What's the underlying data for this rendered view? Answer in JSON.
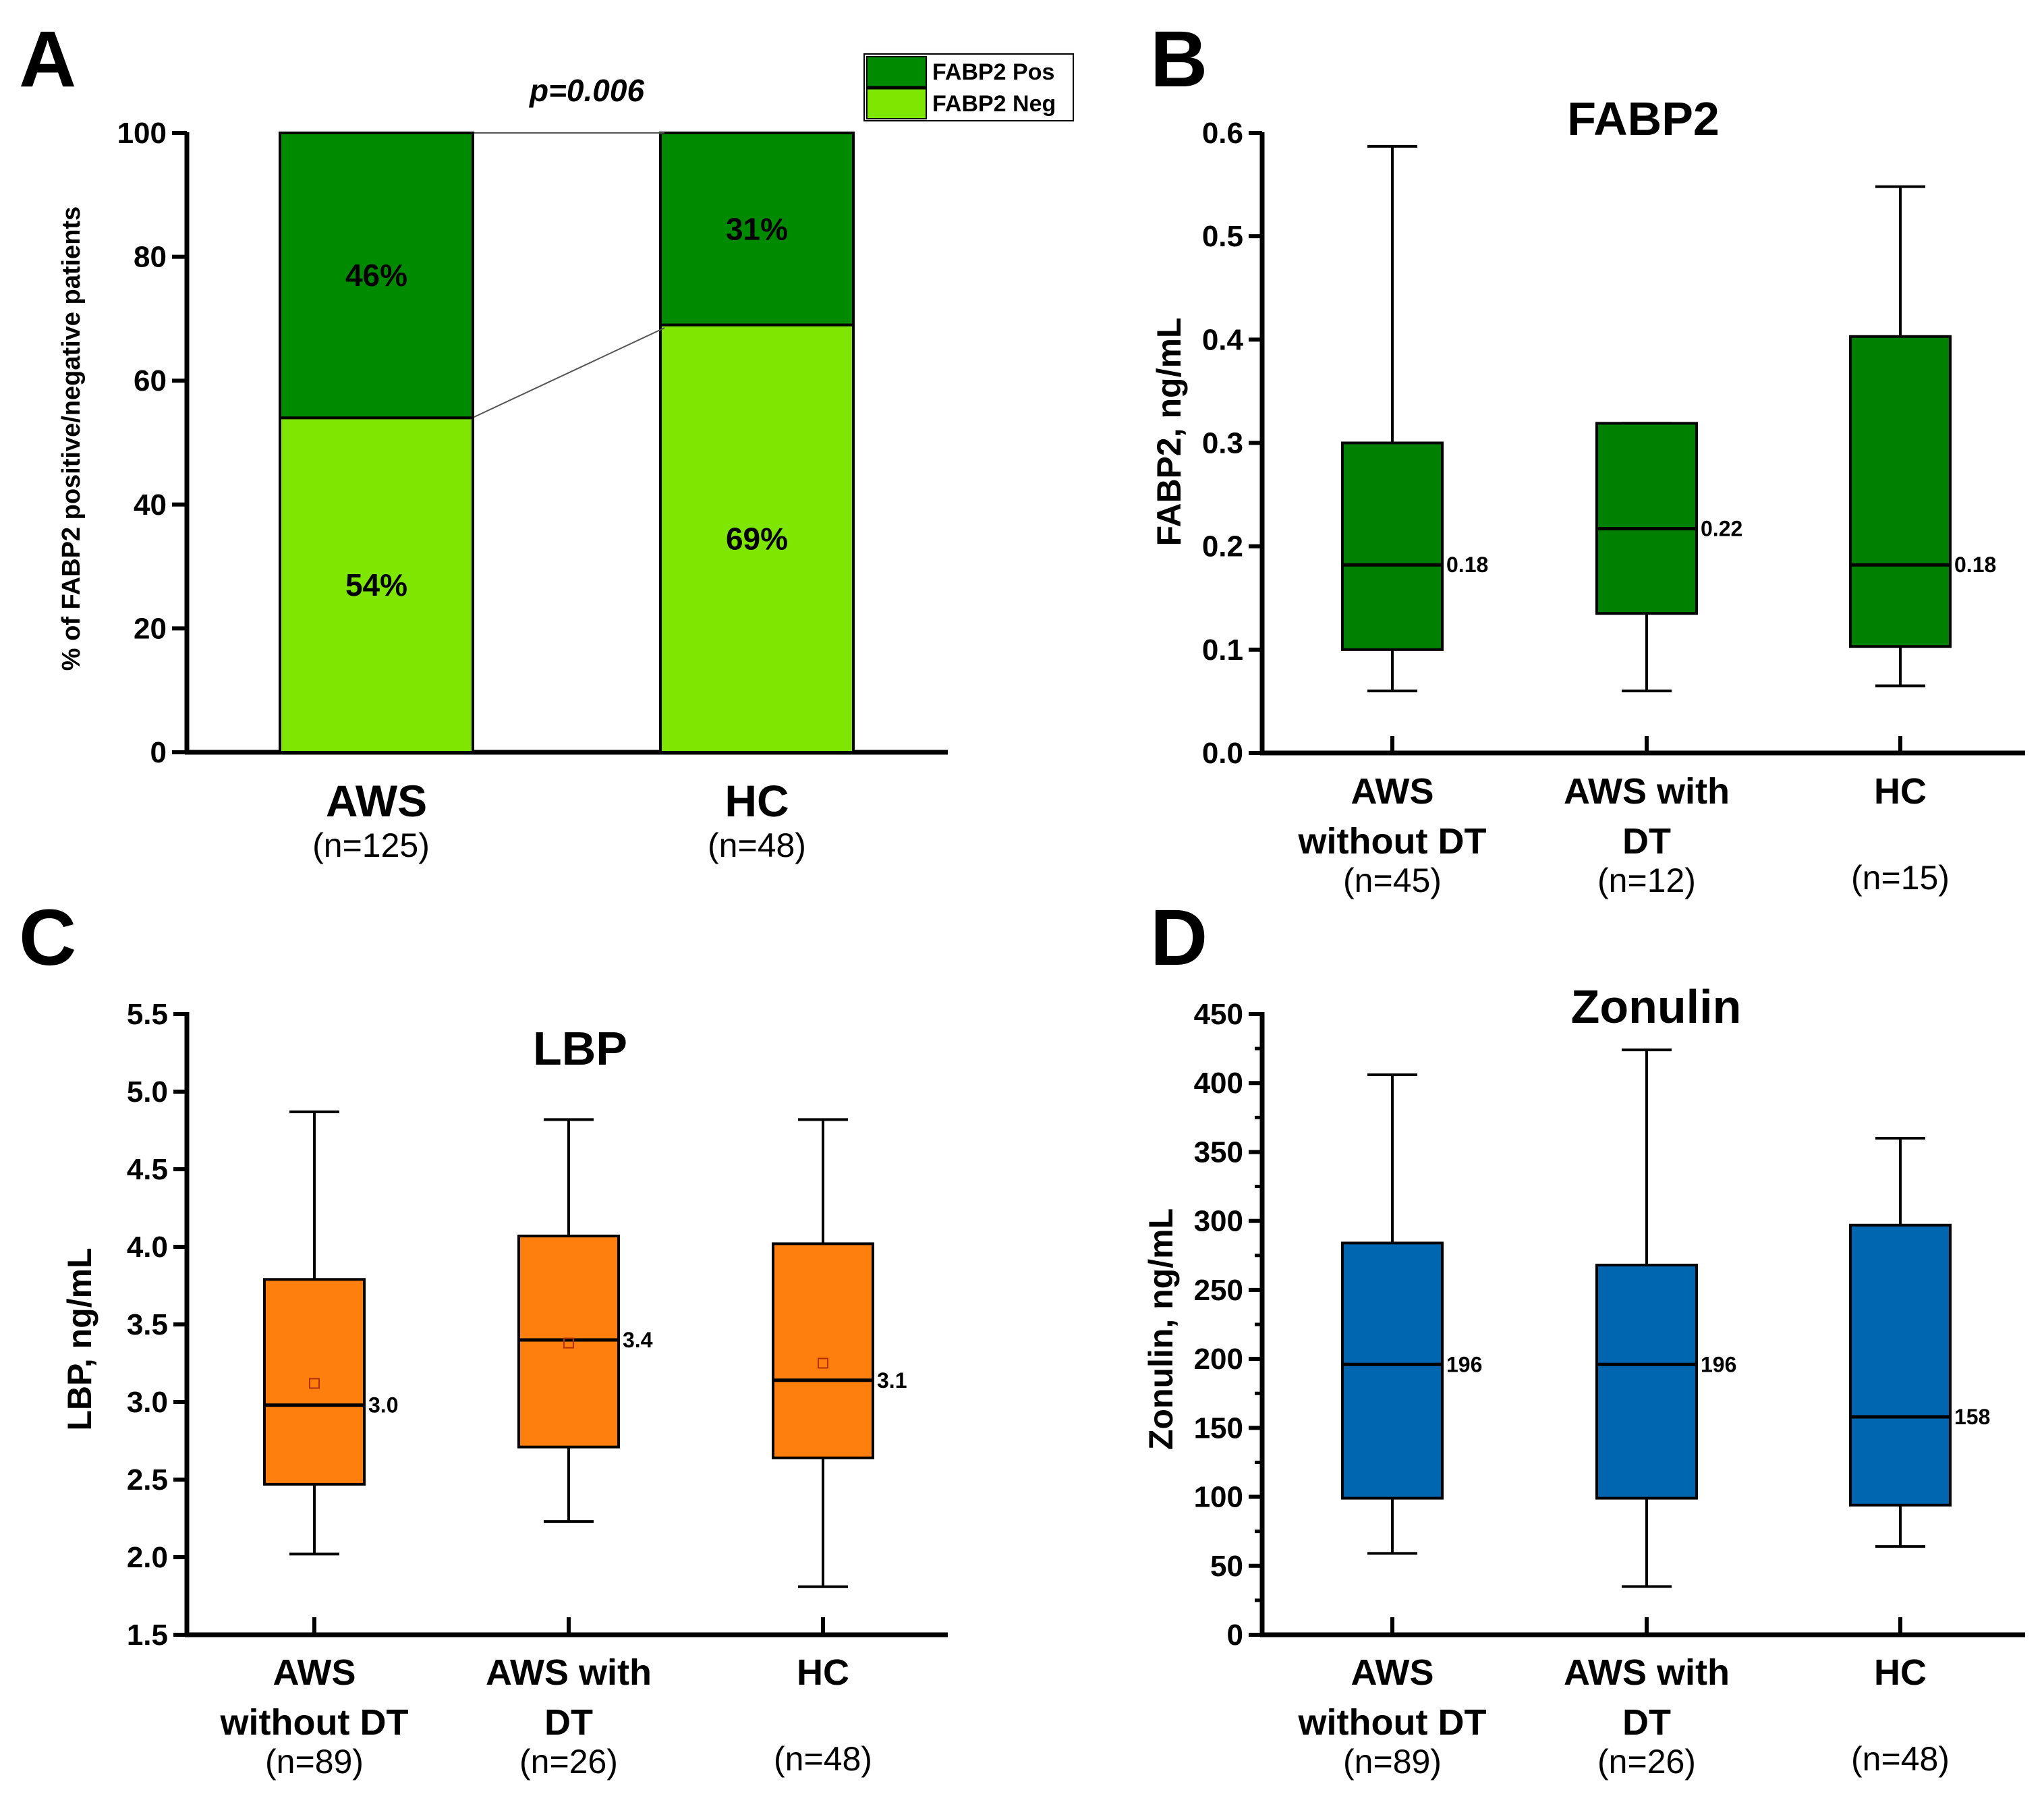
{
  "panels": {
    "A": {
      "letter": "A"
    },
    "B": {
      "letter": "B"
    },
    "C": {
      "letter": "C"
    },
    "D": {
      "letter": "D"
    }
  },
  "chart_data": [
    {
      "panel": "A",
      "type": "bar",
      "stacked": true,
      "title": "",
      "ylabel": "% of FABP2 positive/negative patients",
      "ylim": [
        0,
        100
      ],
      "yticks": [
        0,
        20,
        40,
        60,
        80,
        100
      ],
      "categories": [
        "AWS",
        "HC"
      ],
      "category_n": [
        "(n=125)",
        "(n=48)"
      ],
      "series": [
        {
          "name": "FABP2 Neg",
          "color": "#7ee600",
          "values": [
            54,
            69
          ],
          "labels": [
            "54%",
            "69%"
          ]
        },
        {
          "name": "FABP2 Pos",
          "color": "#008a00",
          "values": [
            46,
            31
          ],
          "labels": [
            "46%",
            "31%"
          ]
        }
      ],
      "legend": [
        "FABP2 Pos",
        "FABP2 Neg"
      ],
      "legend_position": "top-right",
      "annotation": "p=0.006"
    },
    {
      "panel": "B",
      "type": "box",
      "title": "FABP2",
      "ylabel": "FABP2, ng/mL",
      "ylim": [
        0,
        0.6
      ],
      "yticks": [
        "0.0",
        "0.1",
        "0.2",
        "0.3",
        "0.4",
        "0.5",
        "0.6"
      ],
      "color": "#008000",
      "categories": [
        {
          "line1": "AWS",
          "line2": "without DT",
          "n": "(n=45)"
        },
        {
          "line1": "AWS with",
          "line2": "DT",
          "n": "(n=12)"
        },
        {
          "line1": "HC",
          "line2": "",
          "n": "(n=15)"
        }
      ],
      "boxes": [
        {
          "min": 0.06,
          "q1": 0.1,
          "median": 0.182,
          "q3": 0.3,
          "max": 0.587,
          "label": "0.18"
        },
        {
          "min": 0.06,
          "q1": 0.135,
          "median": 0.217,
          "q3": 0.319,
          "max": 0.319,
          "label": "0.22"
        },
        {
          "min": 0.065,
          "q1": 0.103,
          "median": 0.182,
          "q3": 0.403,
          "max": 0.548,
          "label": "0.18"
        }
      ]
    },
    {
      "panel": "C",
      "type": "box",
      "title": "LBP",
      "ylabel": "LBP, ng/mL",
      "ylim": [
        1.5,
        5.5
      ],
      "yticks": [
        "1.5",
        "2.0",
        "2.5",
        "3.0",
        "3.5",
        "4.0",
        "4.5",
        "5.0",
        "5.5"
      ],
      "color": "#ff7f0e",
      "categories": [
        {
          "line1": "AWS",
          "line2": "without DT",
          "n": "(n=89)"
        },
        {
          "line1": "AWS with",
          "line2": "DT",
          "n": "(n=26)"
        },
        {
          "line1": "HC",
          "line2": "",
          "n": "(n=48)"
        }
      ],
      "boxes": [
        {
          "min": 2.02,
          "q1": 2.47,
          "median": 2.98,
          "q3": 3.79,
          "max": 4.87,
          "mean": 3.12,
          "label": "3.0"
        },
        {
          "min": 2.23,
          "q1": 2.71,
          "median": 3.4,
          "q3": 4.07,
          "max": 4.82,
          "mean": 3.38,
          "label": "3.4"
        },
        {
          "min": 1.81,
          "q1": 2.64,
          "median": 3.14,
          "q3": 4.02,
          "max": 4.82,
          "mean": 3.25,
          "label": "3.1"
        }
      ]
    },
    {
      "panel": "D",
      "type": "box",
      "title": "Zonulin",
      "ylabel": "Zonulin, ng/mL",
      "ylim": [
        0,
        450
      ],
      "yticks": [
        "0",
        "50",
        "100",
        "150",
        "200",
        "250",
        "300",
        "350",
        "400",
        "450"
      ],
      "color": "#0066b0",
      "categories": [
        {
          "line1": "AWS",
          "line2": "without DT",
          "n": "(n=89)"
        },
        {
          "line1": "AWS with",
          "line2": "DT",
          "n": "(n=26)"
        },
        {
          "line1": "HC",
          "line2": "",
          "n": "(n=48)"
        }
      ],
      "boxes": [
        {
          "min": 59,
          "q1": 99,
          "median": 196,
          "q3": 284,
          "max": 406,
          "label": "196"
        },
        {
          "min": 35,
          "q1": 99,
          "median": 196,
          "q3": 268,
          "max": 424,
          "label": "196"
        },
        {
          "min": 64,
          "q1": 94,
          "median": 158,
          "q3": 297,
          "max": 360,
          "label": "158"
        }
      ]
    }
  ]
}
